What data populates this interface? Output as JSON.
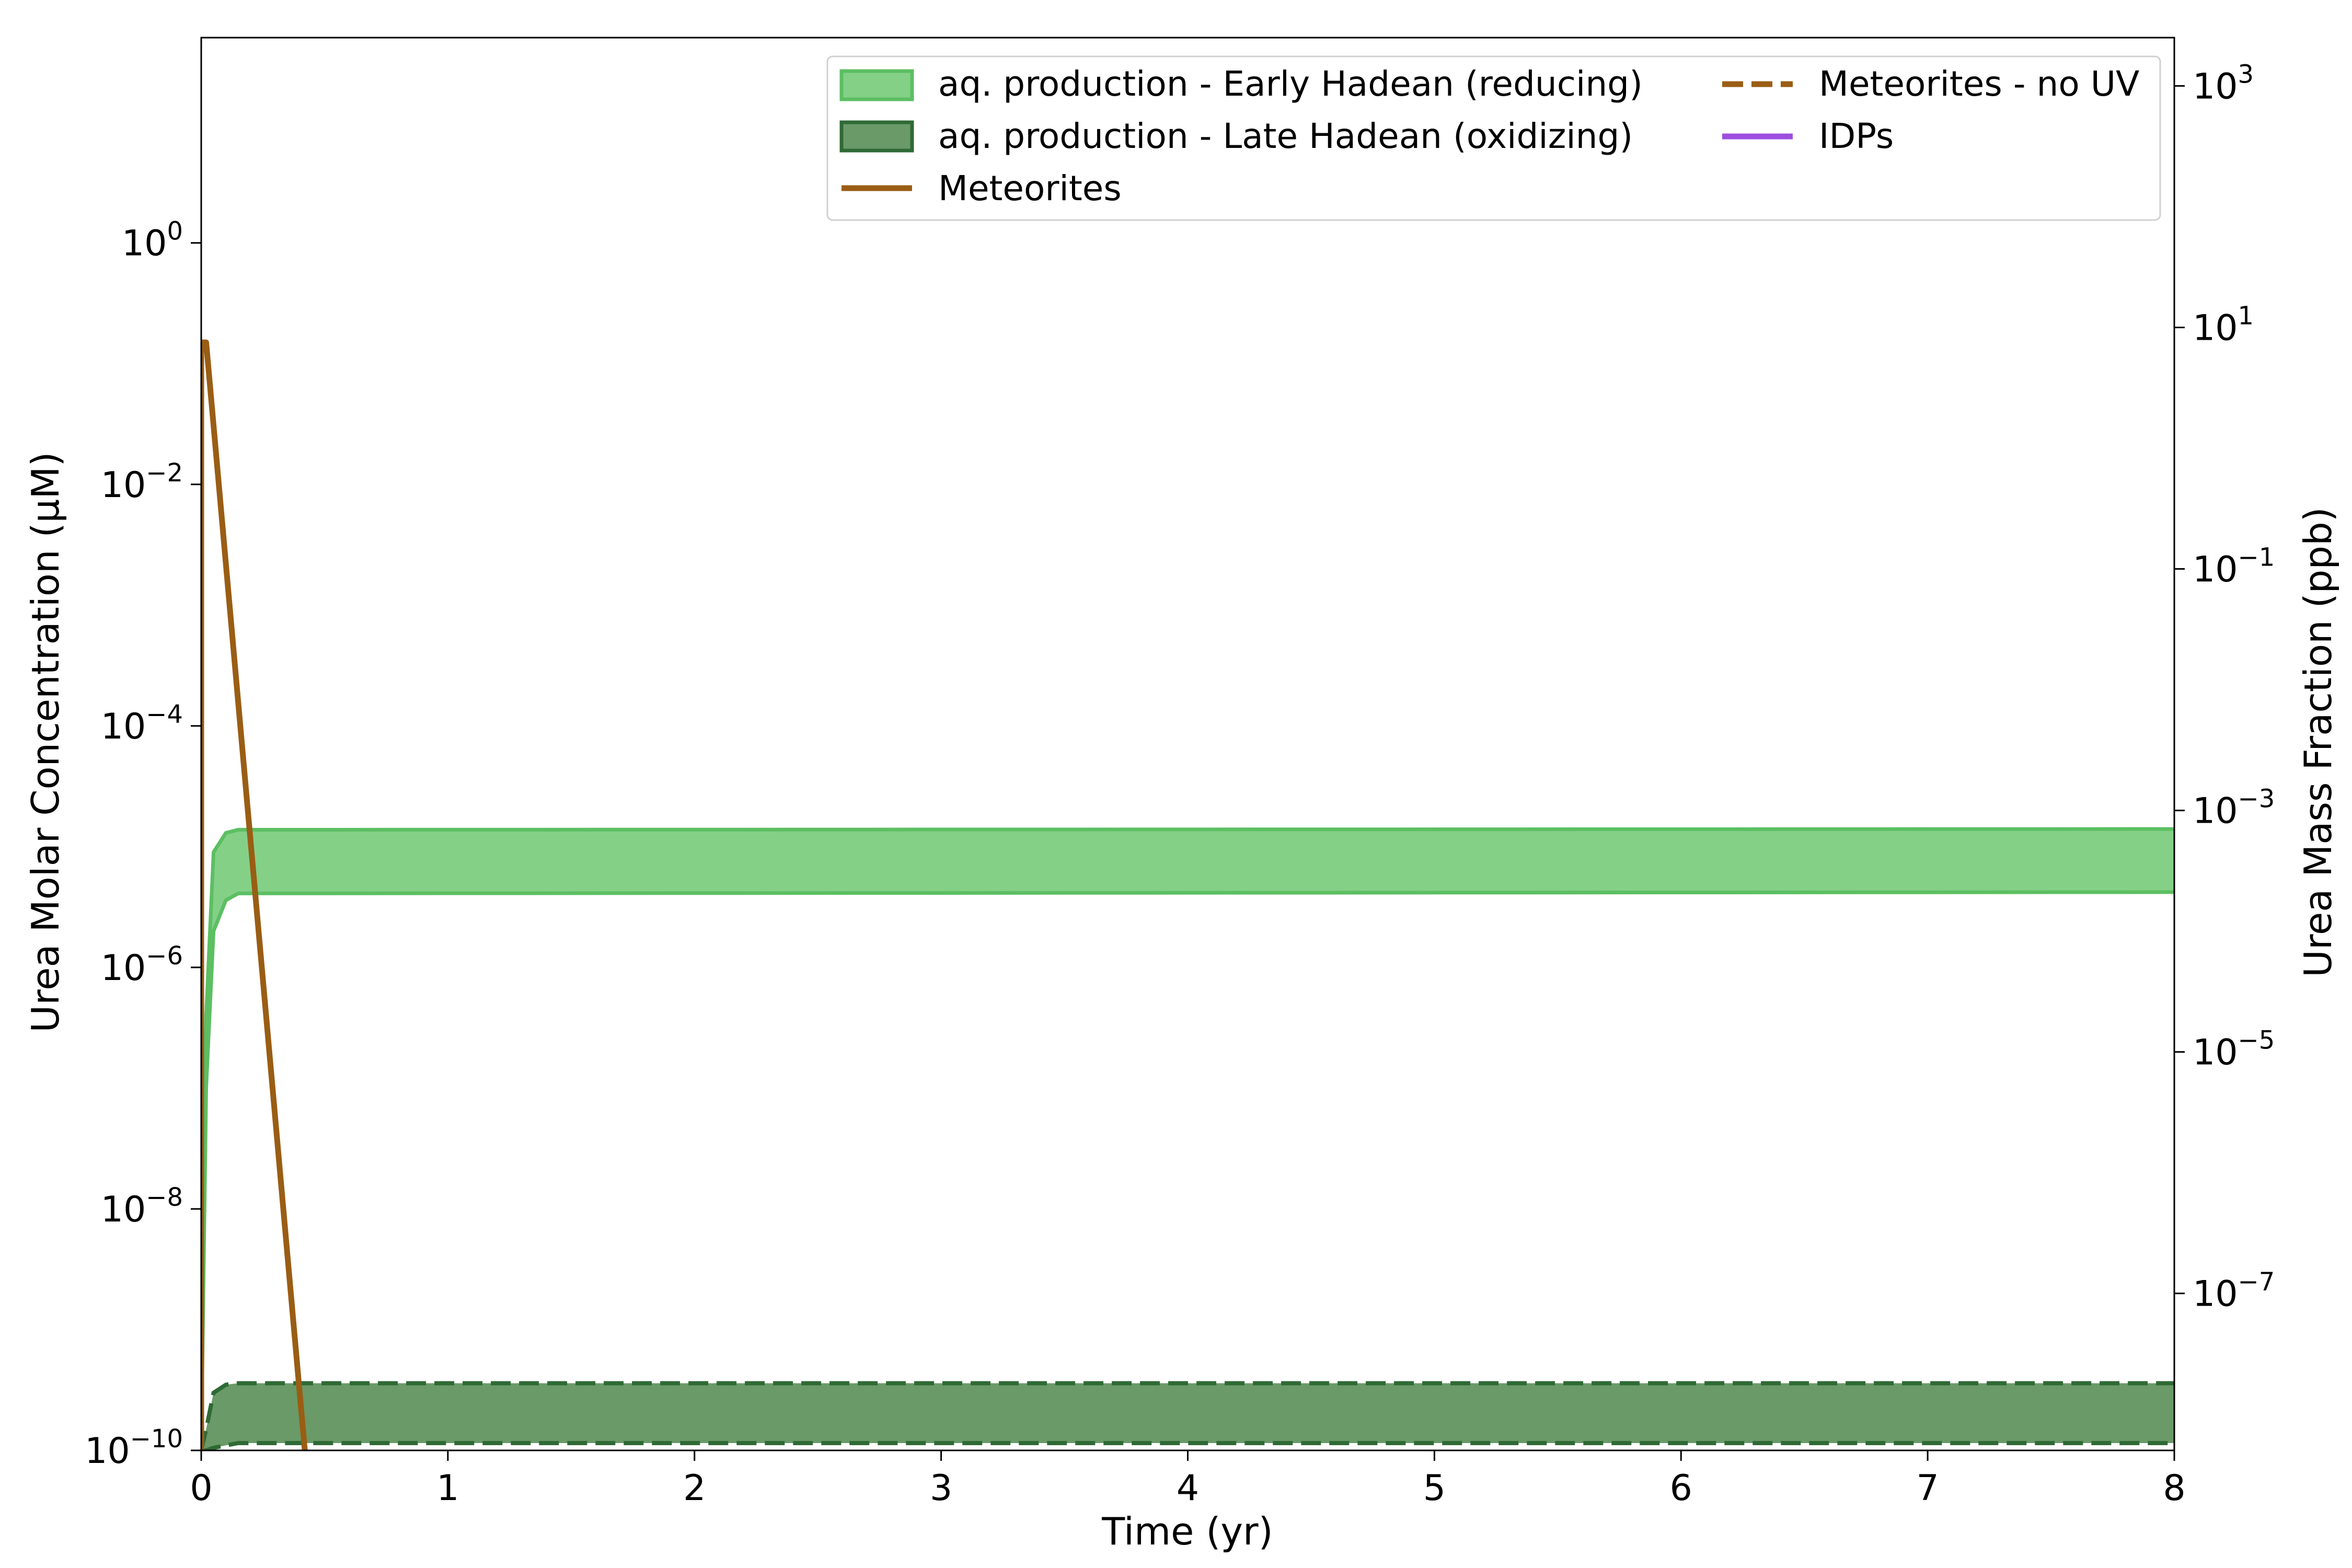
{
  "chart_data": {
    "type": "line",
    "xlabel": "Time (yr)",
    "ylabel_left": "Urea Molar Concentration (μM)",
    "ylabel_right": "Urea Mass Fraction (ppb)",
    "xlim": [
      0,
      8
    ],
    "ylim_left_log10": [
      -10,
      1.7
    ],
    "ylim_right_log10": [
      -8.3,
      3.4
    ],
    "y_scale": "log",
    "grid": false,
    "legend_placement": "top-right",
    "x_ticks": [
      {
        "label": "0",
        "value": 0
      },
      {
        "label": "1",
        "value": 1
      },
      {
        "label": "2",
        "value": 2
      },
      {
        "label": "3",
        "value": 3
      },
      {
        "label": "4",
        "value": 4
      },
      {
        "label": "5",
        "value": 5
      },
      {
        "label": "6",
        "value": 6
      },
      {
        "label": "7",
        "value": 7
      },
      {
        "label": "8",
        "value": 8
      }
    ],
    "y_ticks_left": [
      {
        "base": "10",
        "exp": "0",
        "value": 0
      },
      {
        "base": "10",
        "exp": "−2",
        "value": -2
      },
      {
        "base": "10",
        "exp": "−4",
        "value": -4
      },
      {
        "base": "10",
        "exp": "−6",
        "value": -6
      },
      {
        "base": "10",
        "exp": "−8",
        "value": -8
      },
      {
        "base": "10",
        "exp": "−10",
        "value": -10
      }
    ],
    "y_ticks_right": [
      {
        "base": "10",
        "exp": "3",
        "value": 3
      },
      {
        "base": "10",
        "exp": "1",
        "value": 1
      },
      {
        "base": "10",
        "exp": "−1",
        "value": -1
      },
      {
        "base": "10",
        "exp": "−3",
        "value": -3
      },
      {
        "base": "10",
        "exp": "−5",
        "value": -5
      },
      {
        "base": "10",
        "exp": "−7",
        "value": -7
      }
    ],
    "series": [
      {
        "name": "aq. production - Early Hadean (reducing)",
        "kind": "band",
        "color": "#5cbf62",
        "fill": "#84d087",
        "x": [
          0,
          0.02,
          0.05,
          0.1,
          0.15,
          8
        ],
        "lower_uM": [
          1e-10,
          1e-07,
          2e-06,
          3.6e-06,
          4.1e-06,
          4.2e-06
        ],
        "upper_uM": [
          1e-10,
          4e-07,
          9e-06,
          1.3e-05,
          1.38e-05,
          1.4e-05
        ]
      },
      {
        "name": "aq. production - Late Hadean (oxidizing)",
        "kind": "band",
        "color": "#2f6a36",
        "fill": "#6a9a67",
        "x": [
          0,
          0.02,
          0.05,
          0.1,
          0.15,
          8
        ],
        "lower_uM": [
          1e-10,
          1e-10,
          1.05e-10,
          1.1e-10,
          1.15e-10,
          1.15e-10
        ],
        "upper_uM": [
          1e-10,
          1.5e-10,
          3e-10,
          3.5e-10,
          3.6e-10,
          3.6e-10
        ]
      },
      {
        "name": "Meteorites",
        "kind": "line",
        "color": "#9a5d14",
        "dash": "solid",
        "x": [
          0,
          0,
          0.02,
          0.42
        ],
        "y_uM": [
          1e-10,
          0.15,
          0.15,
          1e-10
        ]
      },
      {
        "name": "Meteorites - no UV",
        "kind": "line",
        "color": "#9a5d14",
        "dash": "dashed",
        "x": [],
        "y_uM": []
      },
      {
        "name": "IDPs",
        "kind": "line",
        "color": "#9d4fe0",
        "dash": "solid",
        "x": [],
        "y_uM": []
      }
    ]
  }
}
